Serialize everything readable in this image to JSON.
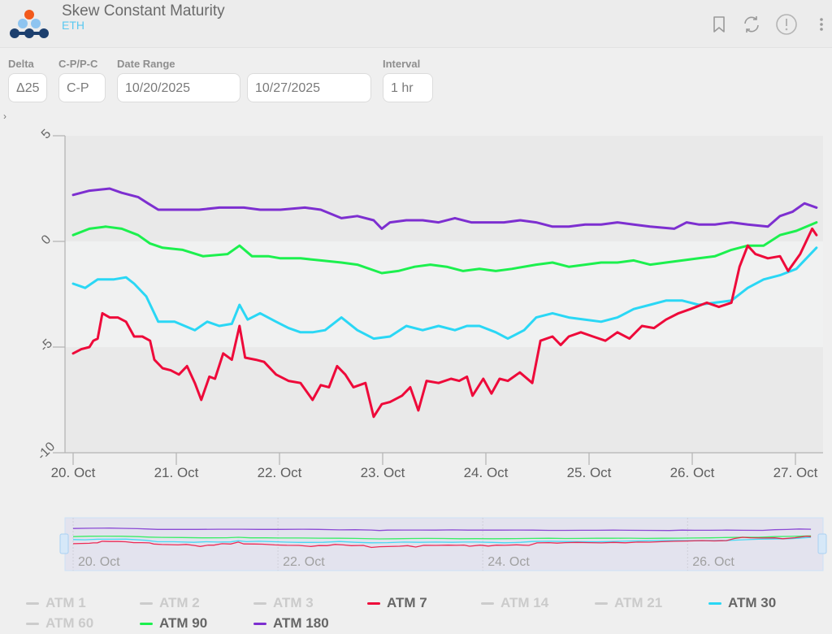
{
  "header": {
    "title": "Skew Constant Maturity",
    "subtitle": "ETH",
    "icons": [
      "bookmark-icon",
      "refresh-icon",
      "info-alert-icon",
      "more-vertical-icon"
    ]
  },
  "controls": {
    "delta": {
      "label": "Delta",
      "value": "Δ25"
    },
    "cp": {
      "label": "C-P/P-C",
      "value": "C-P"
    },
    "date_range": {
      "label": "Date Range",
      "start": "10/20/2025",
      "end": "10/27/2025"
    },
    "interval": {
      "label": "Interval",
      "value": "1 hr"
    },
    "toggle_glyph": "›"
  },
  "legend": [
    {
      "name": "ATM 1",
      "visible": false,
      "color": "#cccccc"
    },
    {
      "name": "ATM 2",
      "visible": false,
      "color": "#cccccc"
    },
    {
      "name": "ATM 3",
      "visible": false,
      "color": "#cccccc"
    },
    {
      "name": "ATM 7",
      "visible": true,
      "color": "#ee0a3a"
    },
    {
      "name": "ATM 14",
      "visible": false,
      "color": "#cccccc"
    },
    {
      "name": "ATM 21",
      "visible": false,
      "color": "#cccccc"
    },
    {
      "name": "ATM 30",
      "visible": true,
      "color": "#2ad7f5"
    },
    {
      "name": "ATM 60",
      "visible": false,
      "color": "#cccccc"
    },
    {
      "name": "ATM 90",
      "visible": true,
      "color": "#1cf04e"
    },
    {
      "name": "ATM 180",
      "visible": true,
      "color": "#7d2fd0"
    }
  ],
  "chart_data": {
    "type": "line",
    "title": "Skew Constant Maturity",
    "xlabel": "",
    "ylabel": "",
    "x_unit": "hours since 20 Oct 2025 00:00",
    "xlim": [
      -1.9,
      174.6
    ],
    "ylim": [
      -10,
      5
    ],
    "yticks": [
      -10,
      -5,
      0,
      5
    ],
    "ytick_labels": [
      "-10",
      "-5",
      "0",
      "5"
    ],
    "xticks": [
      0,
      24,
      48,
      72,
      96,
      120,
      144,
      168
    ],
    "xtick_labels": [
      "20. Oct",
      "21. Oct",
      "22. Oct",
      "23. Oct",
      "24. Oct",
      "25. Oct",
      "26. Oct",
      "27. Oct"
    ],
    "navigator_tick_labels": [
      "20. Oct",
      "22. Oct",
      "24. Oct",
      "26. Oct"
    ],
    "navigator_ticks": [
      0,
      48,
      96,
      144
    ],
    "plot_bands": [
      {
        "from": -10,
        "to": -5
      },
      {
        "from": 0,
        "to": 5
      }
    ],
    "legend_position": "bottom",
    "series": [
      {
        "name": "ATM 180",
        "color": "#7d2fd0",
        "x": [
          0,
          3.8,
          8.5,
          11.3,
          15.1,
          17.4,
          19.8,
          23.6,
          29.3,
          34,
          39.7,
          43.5,
          48.2,
          53.9,
          57.6,
          62.4,
          66.1,
          69.9,
          71.8,
          73.7,
          77.5,
          81.3,
          85,
          88.8,
          92.6,
          96.4,
          100.2,
          104,
          107.7,
          111.5,
          115.3,
          119.1,
          122.8,
          126.6,
          130.4,
          134.2,
          139.8,
          142.7,
          145.5,
          149.3,
          153.1,
          156.9,
          161.6,
          164.4,
          167.3,
          170.1,
          172.9
        ],
        "y": [
          2.2,
          2.4,
          2.5,
          2.3,
          2.1,
          1.8,
          1.5,
          1.5,
          1.5,
          1.6,
          1.6,
          1.5,
          1.5,
          1.6,
          1.5,
          1.1,
          1.2,
          1.0,
          0.6,
          0.9,
          1.0,
          1.0,
          0.9,
          1.1,
          0.9,
          0.9,
          0.9,
          1.0,
          0.9,
          0.7,
          0.7,
          0.8,
          0.8,
          0.9,
          0.8,
          0.7,
          0.6,
          0.9,
          0.8,
          0.8,
          0.9,
          0.8,
          0.7,
          1.2,
          1.4,
          1.8,
          1.6
        ]
      },
      {
        "name": "ATM 90",
        "color": "#1cf04e",
        "x": [
          0,
          3.8,
          7.6,
          11.3,
          15.1,
          17.9,
          20.8,
          25.5,
          30.2,
          35.9,
          38.7,
          41.6,
          45.4,
          48.2,
          52.9,
          57.6,
          62.4,
          66.1,
          71.8,
          75.6,
          79.4,
          83.1,
          86.9,
          90.7,
          94.5,
          98.3,
          102.0,
          107.7,
          111.5,
          115.3,
          119.1,
          122.8,
          126.6,
          130.4,
          134.2,
          137.9,
          141.7,
          145.5,
          149.3,
          153.1,
          156.9,
          160.6,
          164.4,
          168.2,
          172.9
        ],
        "y": [
          0.3,
          0.6,
          0.7,
          0.6,
          0.3,
          -0.1,
          -0.3,
          -0.4,
          -0.7,
          -0.6,
          -0.2,
          -0.7,
          -0.7,
          -0.8,
          -0.8,
          -0.9,
          -1.0,
          -1.1,
          -1.5,
          -1.4,
          -1.2,
          -1.1,
          -1.2,
          -1.4,
          -1.3,
          -1.4,
          -1.3,
          -1.1,
          -1.0,
          -1.2,
          -1.1,
          -1.0,
          -1.0,
          -0.9,
          -1.1,
          -1.0,
          -0.9,
          -0.8,
          -0.7,
          -0.4,
          -0.2,
          -0.2,
          0.3,
          0.5,
          0.9
        ]
      },
      {
        "name": "ATM 30",
        "color": "#2ad7f5",
        "x": [
          0,
          2.8,
          5.7,
          9.4,
          12.3,
          14.2,
          17,
          19.8,
          23.6,
          28.3,
          31.2,
          34,
          36.9,
          38.7,
          40.6,
          43.5,
          47.2,
          50.1,
          52.9,
          55.7,
          58.6,
          62.4,
          66.1,
          69.9,
          73.7,
          77.5,
          81.3,
          85,
          88.8,
          91.6,
          94.5,
          98.3,
          101.1,
          104.9,
          107.7,
          111.5,
          115.3,
          119.1,
          122.8,
          126.6,
          130.4,
          134.2,
          137.9,
          141.7,
          145.5,
          149.3,
          153.1,
          156.9,
          160.6,
          164.4,
          168.2,
          172.9
        ],
        "y": [
          -2.0,
          -2.2,
          -1.8,
          -1.8,
          -1.7,
          -2.0,
          -2.6,
          -3.8,
          -3.8,
          -4.2,
          -3.8,
          -4.0,
          -3.9,
          -3.0,
          -3.7,
          -3.4,
          -3.8,
          -4.1,
          -4.3,
          -4.3,
          -4.2,
          -3.6,
          -4.2,
          -4.6,
          -4.5,
          -4.0,
          -4.2,
          -4.0,
          -4.2,
          -4.0,
          -4.0,
          -4.3,
          -4.6,
          -4.2,
          -3.6,
          -3.4,
          -3.6,
          -3.7,
          -3.8,
          -3.6,
          -3.2,
          -3.0,
          -2.8,
          -2.8,
          -3.0,
          -2.9,
          -2.8,
          -2.2,
          -1.8,
          -1.6,
          -1.3,
          -0.3
        ]
      },
      {
        "name": "ATM 7",
        "color": "#ee0a3a",
        "x": [
          0,
          1.9,
          3.8,
          4.7,
          5.7,
          6.8,
          8.5,
          10.4,
          12.3,
          14.2,
          16.1,
          17.9,
          18.9,
          20.8,
          22.7,
          24.6,
          26.5,
          28.3,
          29.8,
          31.7,
          33,
          34.9,
          36.9,
          38.7,
          40,
          42.5,
          44.4,
          47.2,
          50.1,
          52.9,
          55.7,
          57.6,
          59.5,
          61.4,
          63.3,
          65.2,
          68,
          69.9,
          71.8,
          73.7,
          76.5,
          78.4,
          80.3,
          82.2,
          85,
          87.9,
          89.8,
          91.6,
          92.9,
          95.4,
          97.3,
          99.2,
          101.1,
          103.9,
          106.8,
          108.7,
          111.5,
          113.4,
          115.3,
          118.1,
          120.9,
          123.8,
          126.6,
          129.4,
          132.3,
          135.1,
          137.9,
          140.8,
          143.6,
          147.4,
          150.2,
          153.1,
          155,
          156.9,
          158.7,
          161.6,
          164.4,
          166.3,
          169.1,
          171.9,
          172.9
        ],
        "y": [
          -5.3,
          -5.1,
          -5.0,
          -4.7,
          -4.6,
          -3.4,
          -3.6,
          -3.6,
          -3.8,
          -4.5,
          -4.5,
          -4.7,
          -5.6,
          -6.0,
          -6.1,
          -6.3,
          -5.9,
          -6.7,
          -7.5,
          -6.4,
          -6.5,
          -5.3,
          -5.6,
          -4.0,
          -5.5,
          -5.6,
          -5.7,
          -6.3,
          -6.6,
          -6.7,
          -7.5,
          -6.8,
          -6.9,
          -5.9,
          -6.3,
          -6.9,
          -6.7,
          -8.3,
          -7.7,
          -7.6,
          -7.3,
          -6.9,
          -8.0,
          -6.6,
          -6.7,
          -6.5,
          -6.6,
          -6.4,
          -7.3,
          -6.5,
          -7.2,
          -6.5,
          -6.6,
          -6.2,
          -6.7,
          -4.7,
          -4.5,
          -4.9,
          -4.5,
          -4.3,
          -4.5,
          -4.7,
          -4.3,
          -4.6,
          -4.0,
          -4.1,
          -3.7,
          -3.4,
          -3.2,
          -2.9,
          -3.1,
          -2.9,
          -1.2,
          -0.2,
          -0.6,
          -0.8,
          -0.7,
          -1.4,
          -0.6,
          0.6,
          0.3
        ]
      }
    ]
  }
}
